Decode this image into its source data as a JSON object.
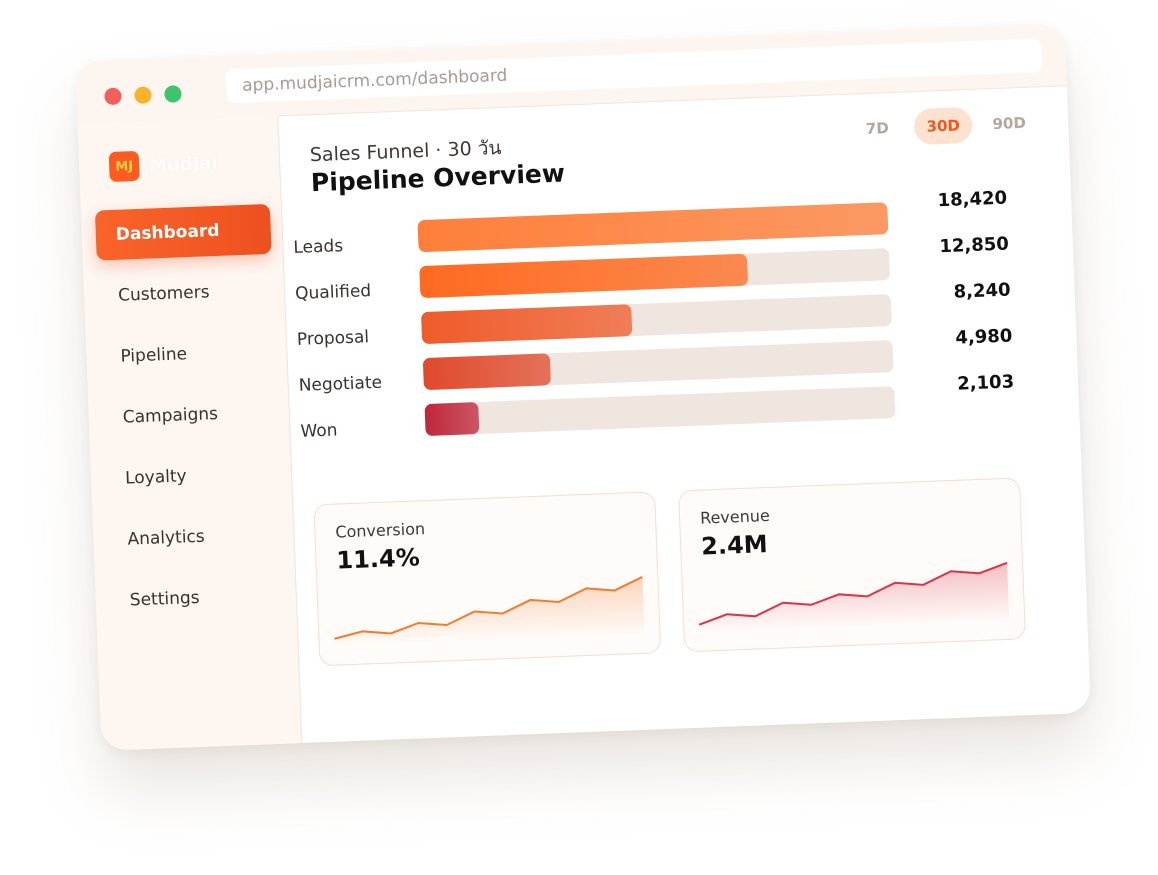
{
  "browser": {
    "url": "app.mudjaicrm.com/dashboard"
  },
  "sidebar": {
    "logo_mark": "MJ",
    "brand": "MudJai",
    "nav": [
      "Dashboard",
      "Customers",
      "Pipeline",
      "Campaigns",
      "Loyalty",
      "Analytics",
      "Settings"
    ],
    "active": 0
  },
  "header": {
    "subtitle": "Sales Funnel · 30 วัน",
    "title": "Pipeline Overview",
    "range_options": [
      "7D",
      "30D",
      "90D"
    ],
    "range_selected": 1
  },
  "chart_data": [
    {
      "type": "bar",
      "orientation": "horizontal",
      "categories": [
        "Leads",
        "Qualified",
        "Proposal",
        "Negotiate",
        "Won"
      ],
      "values": [
        18420,
        12850,
        8240,
        4980,
        2103
      ],
      "value_labels": [
        "18,420",
        "12,850",
        "8,240",
        "4,980",
        "2,103"
      ],
      "colors": [
        "#ff7f3a",
        "#ff6a20",
        "#ef5b2a",
        "#e04a2c",
        "#c0263a"
      ]
    },
    {
      "type": "line",
      "title": "Conversion",
      "headline": "11.4%",
      "color": "#f47a2e",
      "values": [
        2,
        4,
        3,
        6,
        5,
        9,
        8,
        12,
        11,
        15,
        14,
        18
      ]
    },
    {
      "type": "line",
      "title": "Revenue",
      "headline": "2.4M",
      "color": "#d9344a",
      "values": [
        2,
        5,
        4,
        8,
        7,
        10,
        9,
        13,
        12,
        16,
        15,
        18
      ]
    }
  ]
}
